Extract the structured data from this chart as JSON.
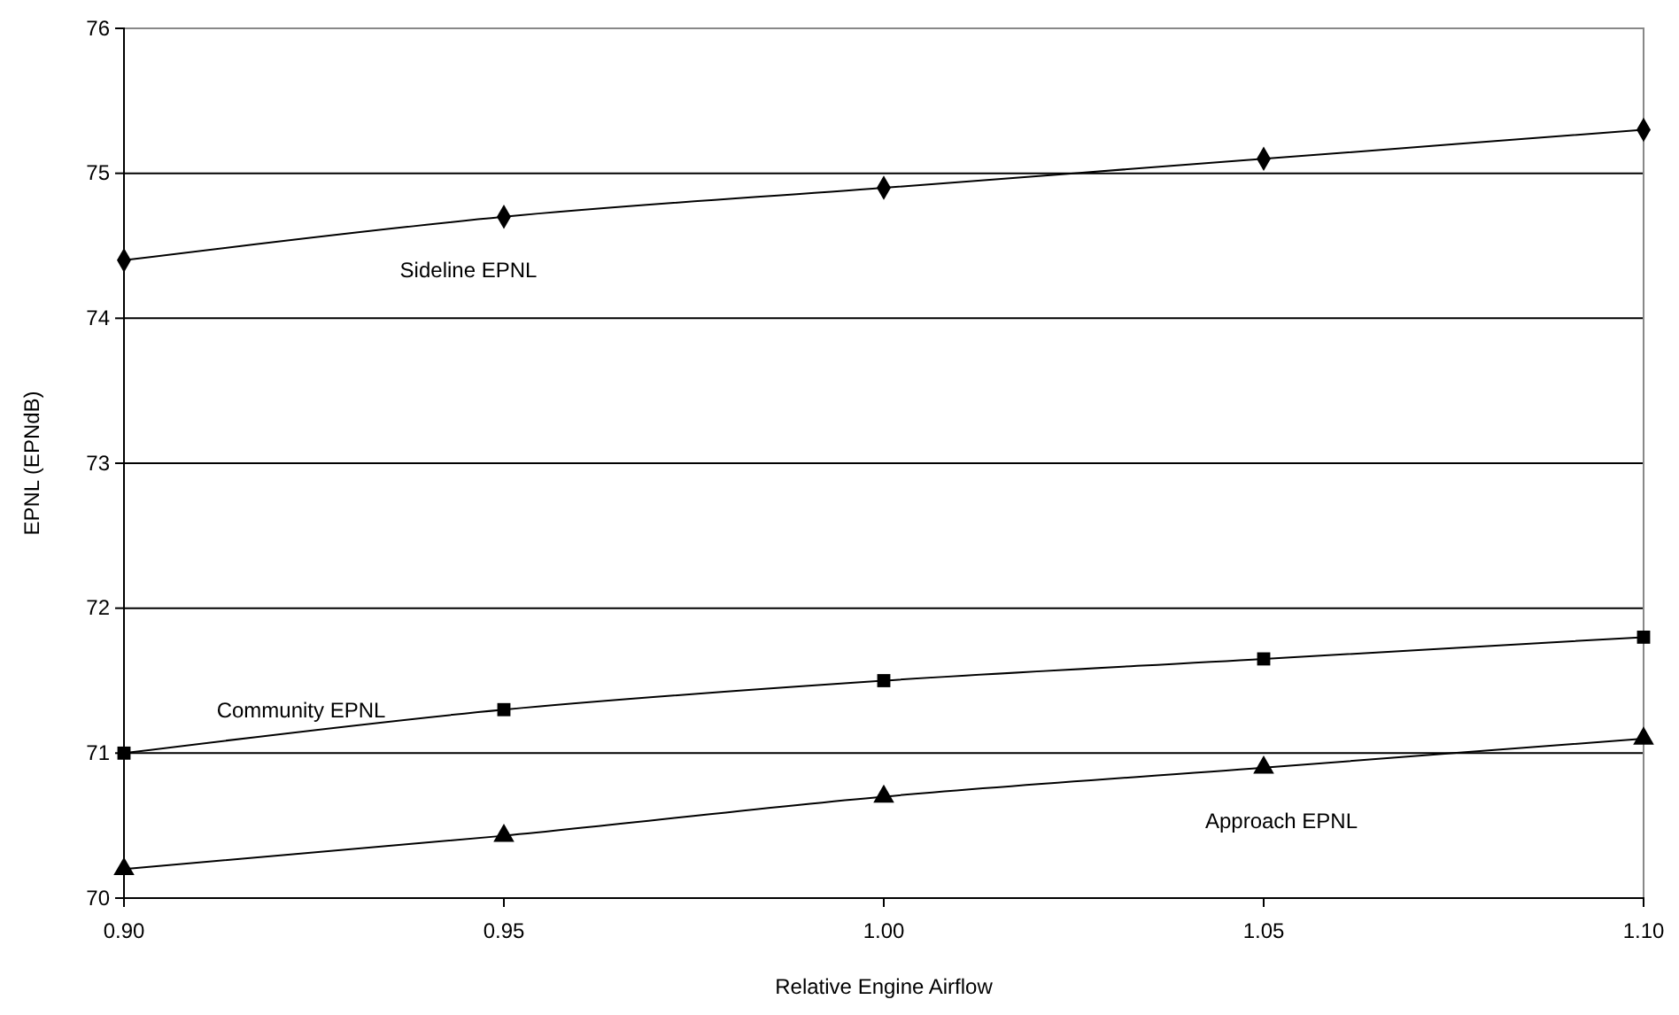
{
  "chart_data": {
    "type": "line",
    "xlabel": "Relative Engine Airflow",
    "ylabel": "EPNL (EPNdB)",
    "x": [
      0.9,
      0.95,
      1.0,
      1.05,
      1.1
    ],
    "xlim": [
      0.9,
      1.1
    ],
    "xticks": [
      {
        "value": 0.9,
        "label": "0.90"
      },
      {
        "value": 0.95,
        "label": "0.95"
      },
      {
        "value": 1.0,
        "label": "1.00"
      },
      {
        "value": 1.05,
        "label": "1.05"
      },
      {
        "value": 1.1,
        "label": "1.10"
      }
    ],
    "ylim": [
      70,
      76
    ],
    "yticks": [
      70,
      71,
      72,
      73,
      74,
      75,
      76
    ],
    "grid": "y",
    "line_style": "solid",
    "series": [
      {
        "name": "Sideline EPNL",
        "color": "#000000",
        "marker": "diamond",
        "values": [
          74.4,
          74.7,
          74.9,
          75.1,
          75.3
        ]
      },
      {
        "name": "Community EPNL",
        "color": "#000000",
        "marker": "square",
        "values": [
          71.0,
          71.3,
          71.5,
          71.65,
          71.8
        ]
      },
      {
        "name": "Approach EPNL",
        "color": "#000000",
        "marker": "triangle",
        "values": [
          70.2,
          70.43,
          70.7,
          70.9,
          71.1
        ]
      }
    ]
  }
}
